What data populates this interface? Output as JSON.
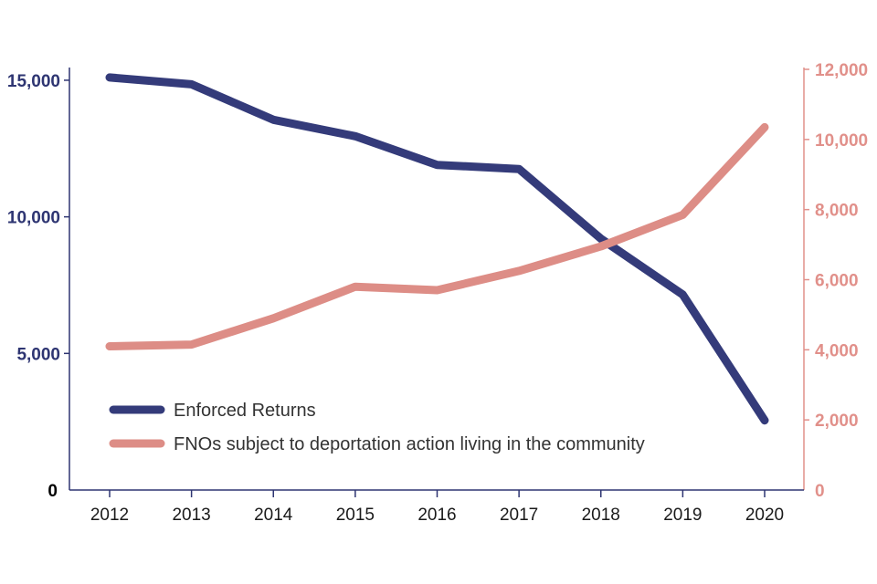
{
  "chart_data": {
    "type": "line",
    "title": "",
    "xlabel": "",
    "ylabel": "",
    "categories": [
      "2012",
      "2013",
      "2014",
      "2015",
      "2016",
      "2017",
      "2018",
      "2019",
      "2020"
    ],
    "series": [
      {
        "name": "Enforced Returns",
        "axis": "left",
        "color": "#343b7a",
        "values": [
          15100,
          14850,
          13550,
          12950,
          11900,
          11750,
          9200,
          7150,
          2550
        ]
      },
      {
        "name": "FNOs subject to deportation action living in the community",
        "axis": "right",
        "color": "#dd8d86",
        "values": [
          4100,
          4150,
          4900,
          5800,
          5700,
          6250,
          6950,
          7850,
          10350
        ]
      }
    ],
    "y_left": {
      "ylim": [
        0,
        16000
      ],
      "ticks": [
        0,
        5000,
        10000,
        15000
      ],
      "tick_labels": [
        "0",
        "5,000",
        "10,000",
        "15,000"
      ],
      "color": "#2e3572"
    },
    "y_right": {
      "ylim": [
        0,
        12000
      ],
      "ticks": [
        0,
        2000,
        4000,
        6000,
        8000,
        10000,
        12000
      ],
      "tick_labels": [
        "0",
        "2,000",
        "4,000",
        "6,000",
        "8,000",
        "10,000",
        "12,000"
      ],
      "color": "#e1908a"
    },
    "grid": false,
    "legend_position": "bottom-left"
  }
}
